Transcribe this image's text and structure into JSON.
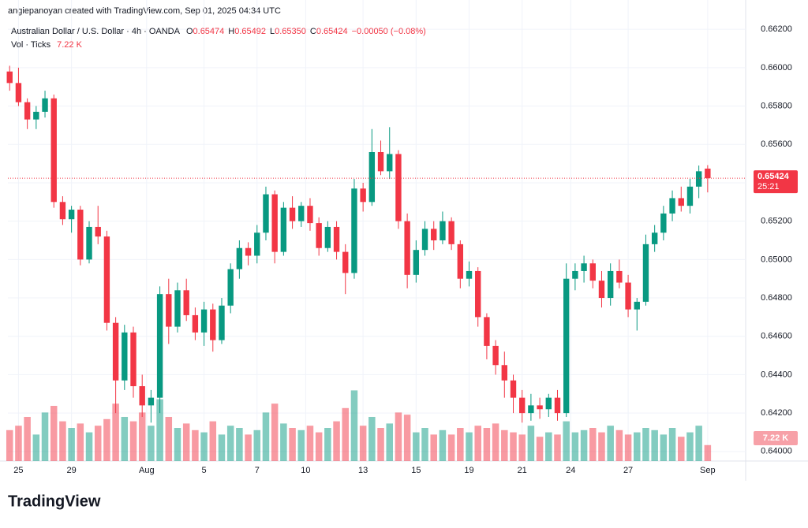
{
  "chart_data": {
    "type": "candlestick",
    "title": "angiepanoyan created with TradingView.com, Sep 01, 2025 04:34 UTC",
    "symbol": "Australian Dollar / U.S. Dollar · 4h · OANDA",
    "legend": [
      {
        "label": "O",
        "value": "0.65474"
      },
      {
        "label": "H",
        "value": "0.65492"
      },
      {
        "label": "L",
        "value": "0.65350"
      },
      {
        "label": "C",
        "value": "0.65424"
      }
    ],
    "change": "−0.00050 (−0.08%)",
    "volume_title": "Vol · Ticks",
    "volume_label": "7.22 K",
    "price_label": "0.65424",
    "countdown": "25:21",
    "brand": "TradingView",
    "up_color": "#089981",
    "down_color": "#f23645",
    "x": [
      0,
      1,
      2,
      3,
      4,
      5,
      6,
      7,
      8,
      9,
      10,
      11,
      12,
      13,
      14,
      15,
      16,
      17,
      18,
      19,
      20,
      21,
      22,
      23,
      24,
      25,
      26,
      27,
      28,
      29,
      30,
      31,
      32,
      33,
      34,
      35,
      36,
      37,
      38,
      39,
      40,
      41,
      42,
      43,
      44,
      45,
      46,
      47,
      48,
      49,
      50,
      51,
      52,
      53,
      54,
      55,
      56,
      57,
      58,
      59,
      60,
      61,
      62,
      63,
      64,
      65,
      66,
      67,
      68,
      69,
      70,
      71,
      72,
      73,
      74,
      75,
      76,
      77,
      78,
      79
    ],
    "open": [
      0.6598,
      0.6592,
      0.6582,
      0.6573,
      0.6577,
      0.6584,
      0.653,
      0.6521,
      0.6526,
      0.65,
      0.6517,
      0.6512,
      0.6467,
      0.6437,
      0.6462,
      0.6434,
      0.6424,
      0.6428,
      0.6482,
      0.6465,
      0.6484,
      0.6471,
      0.6462,
      0.6474,
      0.6458,
      0.6476,
      0.6495,
      0.6506,
      0.6502,
      0.6514,
      0.6534,
      0.6504,
      0.6527,
      0.652,
      0.6528,
      0.6519,
      0.6506,
      0.6517,
      0.6504,
      0.6493,
      0.6537,
      0.653,
      0.6556,
      0.6546,
      0.6555,
      0.652,
      0.6492,
      0.6505,
      0.6516,
      0.651,
      0.652,
      0.6508,
      0.649,
      0.6494,
      0.647,
      0.6455,
      0.6445,
      0.6437,
      0.6428,
      0.642,
      0.6424,
      0.6422,
      0.6428,
      0.642,
      0.649,
      0.6494,
      0.6498,
      0.6489,
      0.648,
      0.6494,
      0.6488,
      0.6474,
      0.6478,
      0.6508,
      0.6514,
      0.6524,
      0.6532,
      0.6528,
      0.6538,
      0.65474
    ],
    "high": [
      0.6601,
      0.66,
      0.6584,
      0.658,
      0.6588,
      0.6586,
      0.6533,
      0.6528,
      0.6528,
      0.652,
      0.6528,
      0.6515,
      0.647,
      0.6466,
      0.6465,
      0.644,
      0.6432,
      0.6486,
      0.649,
      0.6488,
      0.649,
      0.6475,
      0.6478,
      0.6477,
      0.648,
      0.6498,
      0.651,
      0.6509,
      0.6518,
      0.6538,
      0.6536,
      0.653,
      0.6533,
      0.653,
      0.6532,
      0.6522,
      0.652,
      0.652,
      0.6508,
      0.6542,
      0.654,
      0.6568,
      0.6562,
      0.6569,
      0.6557,
      0.6524,
      0.651,
      0.652,
      0.652,
      0.6525,
      0.6522,
      0.651,
      0.6499,
      0.6496,
      0.6472,
      0.6458,
      0.6452,
      0.644,
      0.6432,
      0.643,
      0.6428,
      0.643,
      0.6432,
      0.6498,
      0.6498,
      0.6502,
      0.65,
      0.6494,
      0.6498,
      0.65,
      0.6492,
      0.648,
      0.6513,
      0.6518,
      0.6528,
      0.6536,
      0.6538,
      0.6542,
      0.6549,
      0.65492
    ],
    "low": [
      0.6588,
      0.658,
      0.6568,
      0.6568,
      0.6574,
      0.6527,
      0.6518,
      0.6514,
      0.6497,
      0.6498,
      0.6508,
      0.6463,
      0.642,
      0.6432,
      0.6428,
      0.6418,
      0.6415,
      0.642,
      0.6456,
      0.6462,
      0.6468,
      0.6458,
      0.6455,
      0.6452,
      0.6456,
      0.6472,
      0.649,
      0.6497,
      0.6498,
      0.651,
      0.6498,
      0.6502,
      0.6516,
      0.6517,
      0.6515,
      0.6502,
      0.6504,
      0.65,
      0.6482,
      0.649,
      0.6525,
      0.6528,
      0.6544,
      0.6542,
      0.6516,
      0.6485,
      0.6488,
      0.6502,
      0.6505,
      0.6508,
      0.6505,
      0.6485,
      0.6486,
      0.6465,
      0.6448,
      0.644,
      0.6428,
      0.642,
      0.6415,
      0.6416,
      0.6417,
      0.6418,
      0.6416,
      0.6418,
      0.6484,
      0.6488,
      0.6485,
      0.6475,
      0.6476,
      0.6485,
      0.647,
      0.6463,
      0.6476,
      0.6504,
      0.651,
      0.652,
      0.6525,
      0.6524,
      0.6532,
      0.6535
    ],
    "close": [
      0.6592,
      0.6582,
      0.6573,
      0.6577,
      0.6584,
      0.653,
      0.6521,
      0.6526,
      0.65,
      0.6517,
      0.6512,
      0.6467,
      0.6437,
      0.6462,
      0.6434,
      0.6424,
      0.6428,
      0.6482,
      0.6465,
      0.6484,
      0.6471,
      0.6462,
      0.6474,
      0.6458,
      0.6476,
      0.6495,
      0.6506,
      0.6502,
      0.6514,
      0.6534,
      0.6504,
      0.6527,
      0.652,
      0.6528,
      0.6519,
      0.6506,
      0.6517,
      0.6504,
      0.6493,
      0.6537,
      0.653,
      0.6556,
      0.6546,
      0.6555,
      0.652,
      0.6492,
      0.6505,
      0.6516,
      0.651,
      0.652,
      0.6508,
      0.649,
      0.6494,
      0.647,
      0.6455,
      0.6445,
      0.6437,
      0.6428,
      0.642,
      0.6424,
      0.6422,
      0.6428,
      0.642,
      0.649,
      0.6494,
      0.6498,
      0.6489,
      0.648,
      0.6494,
      0.6488,
      0.6474,
      0.6478,
      0.6508,
      0.6514,
      0.6524,
      0.6532,
      0.6528,
      0.6538,
      0.6546,
      0.65424
    ],
    "volume": [
      14000,
      16000,
      20000,
      12000,
      22000,
      25000,
      18000,
      15000,
      17000,
      13000,
      16000,
      19000,
      26000,
      20000,
      18000,
      22000,
      16000,
      28000,
      20000,
      15000,
      17000,
      14000,
      13000,
      18000,
      12000,
      16000,
      15000,
      12000,
      14000,
      22000,
      26000,
      17000,
      15000,
      14000,
      16000,
      13000,
      15000,
      18000,
      24000,
      32000,
      16000,
      20000,
      15000,
      17000,
      22000,
      21000,
      13000,
      15000,
      12000,
      14000,
      12000,
      15000,
      13000,
      16000,
      15000,
      17000,
      14000,
      13000,
      12000,
      16000,
      11000,
      13000,
      12000,
      18000,
      13000,
      14000,
      15000,
      13000,
      16000,
      14000,
      12000,
      13000,
      15000,
      14000,
      12000,
      15000,
      11000,
      13000,
      16000,
      7220
    ],
    "xlim": [
      -0.2,
      83.3
    ],
    "ylim": [
      0.6395,
      0.6625
    ],
    "vlim": [
      0,
      200000
    ],
    "yticks": [
      {
        "value": 0.64,
        "label": "0.64000"
      },
      {
        "value": 0.642,
        "label": "0.64200"
      },
      {
        "value": 0.644,
        "label": "0.64400"
      },
      {
        "value": 0.646,
        "label": "0.64600"
      },
      {
        "value": 0.648,
        "label": "0.64800"
      },
      {
        "value": 0.65,
        "label": "0.65000"
      },
      {
        "value": 0.652,
        "label": "0.65200"
      },
      {
        "value": 0.654,
        "label": "0.65400"
      },
      {
        "value": 0.656,
        "label": "0.65600"
      },
      {
        "value": 0.658,
        "label": "0.65800"
      },
      {
        "value": 0.66,
        "label": "0.66000"
      },
      {
        "value": 0.662,
        "label": "0.66200"
      }
    ],
    "xticks": [
      {
        "value": 1,
        "label": "25"
      },
      {
        "value": 7,
        "label": "29"
      },
      {
        "value": 15.5,
        "label": "Aug"
      },
      {
        "value": 22,
        "label": "5"
      },
      {
        "value": 28,
        "label": "7"
      },
      {
        "value": 33.5,
        "label": "10"
      },
      {
        "value": 40,
        "label": "13"
      },
      {
        "value": 46,
        "label": "15"
      },
      {
        "value": 52,
        "label": "19"
      },
      {
        "value": 58,
        "label": "21"
      },
      {
        "value": 63.5,
        "label": "24"
      },
      {
        "value": 70,
        "label": "27"
      },
      {
        "value": 79,
        "label": "Sep"
      }
    ],
    "grid": true
  }
}
